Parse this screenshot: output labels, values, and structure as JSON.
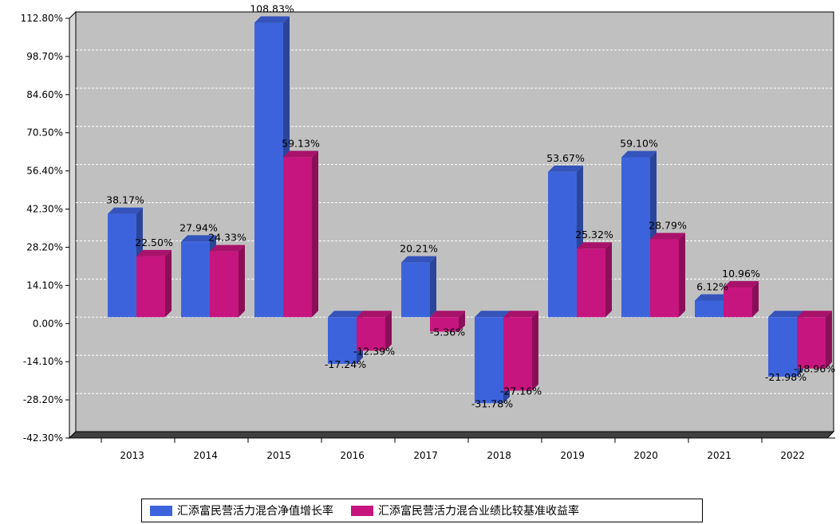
{
  "chart_data": {
    "type": "bar",
    "categories": [
      "2013",
      "2014",
      "2015",
      "2016",
      "2017",
      "2018",
      "2019",
      "2020",
      "2021",
      "2022"
    ],
    "series": [
      {
        "name": "汇添富民营活力混合净值增长率",
        "values": [
          38.17,
          27.94,
          108.83,
          -17.24,
          20.21,
          -31.78,
          53.67,
          59.1,
          6.12,
          -21.98
        ],
        "labels": [
          "38.17%",
          "27.94%",
          "108.83%",
          "-17.24%",
          "20.21%",
          "-31.78%",
          "53.67%",
          "59.10%",
          "6.12%",
          "-21.98%"
        ],
        "color": "#3d63dc"
      },
      {
        "name": "汇添富民营活力混合业绩比较基准收益率",
        "values": [
          22.5,
          24.33,
          59.13,
          -12.39,
          -5.36,
          -27.16,
          25.32,
          28.79,
          10.96,
          -18.96
        ],
        "labels": [
          "22.50%",
          "24.33%",
          "59.13%",
          "-12.39%",
          "-5.36%",
          "-27.16%",
          "25.32%",
          "28.79%",
          "10.96%",
          "-18.96%"
        ],
        "color": "#c6157e"
      }
    ],
    "yticks": [
      "112.80%",
      "98.70%",
      "84.60%",
      "70.50%",
      "56.40%",
      "42.30%",
      "28.20%",
      "14.10%",
      "0.00%",
      "-14.10%",
      "-28.20%",
      "-42.30%"
    ],
    "ylim": [
      -42.3,
      112.8
    ],
    "ytick_step": 14.1,
    "grid": true,
    "legend_position": "bottom",
    "plot_background": "#c0c0c0"
  }
}
